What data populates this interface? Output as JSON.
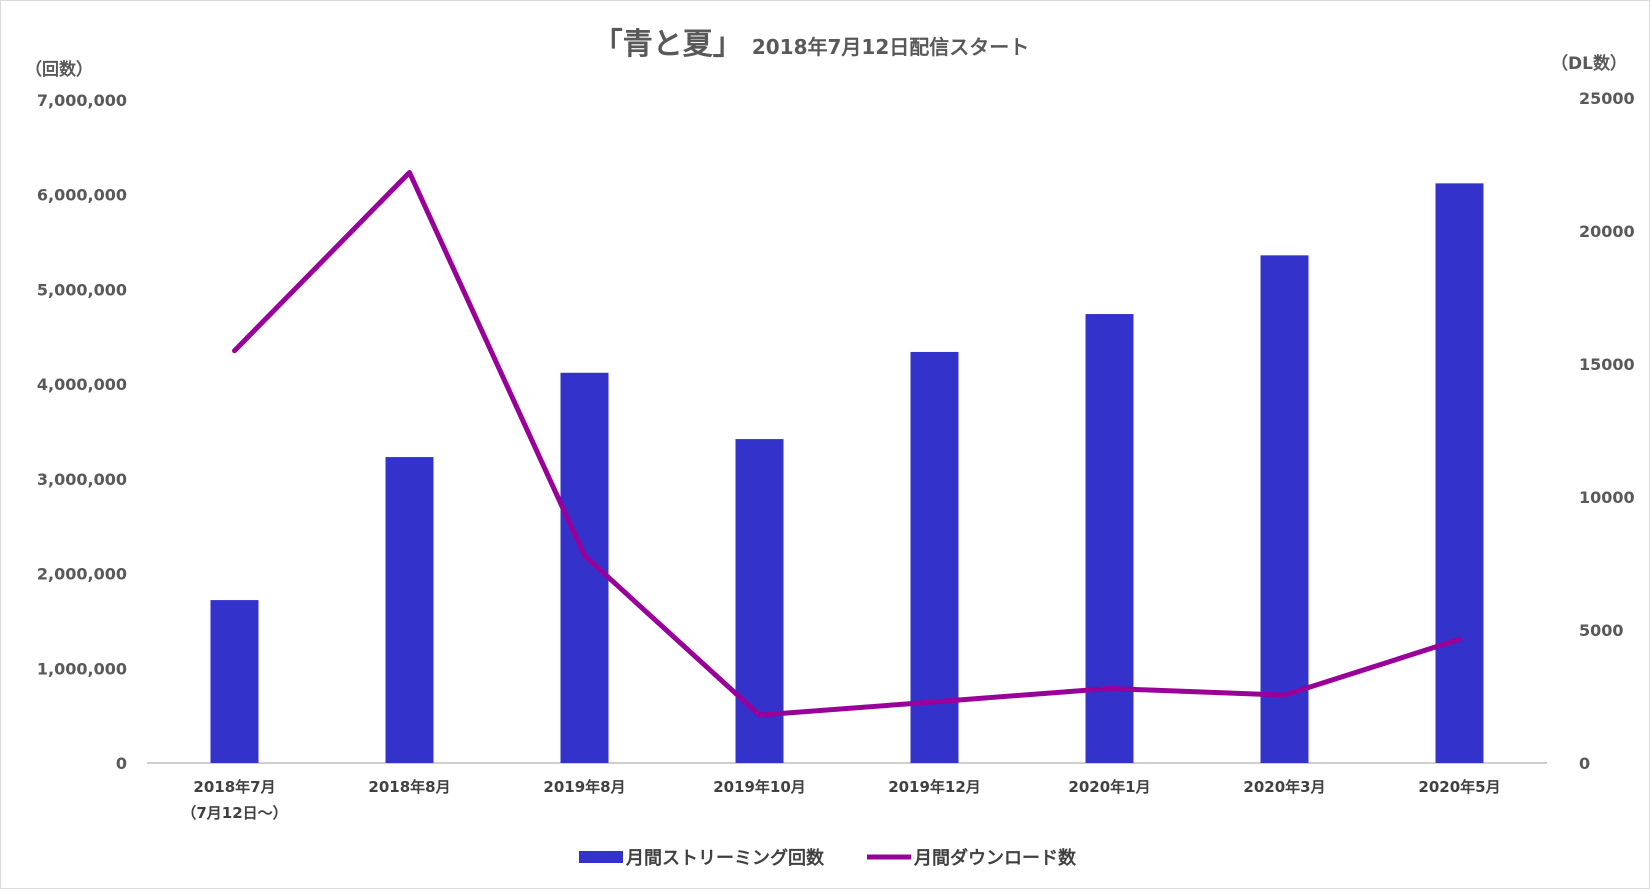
{
  "colors": {
    "bar": "#3333cc",
    "line": "#990099",
    "axis": "#bfbfbf",
    "text": "#595959"
  },
  "chart_data": {
    "type": "bar+line",
    "title_main": "「青と夏」",
    "title_sub": "2018年7月12日配信スタート",
    "y_left_unit": "（回数）",
    "y_right_unit": "（DL数）",
    "y_left_ticks": [
      "7,000,000",
      "6,000,000",
      "5,000,000",
      "4,000,000",
      "3,000,000",
      "2,000,000",
      "1,000,000",
      "0"
    ],
    "y_right_ticks": [
      "25000",
      "20000",
      "15000",
      "10000",
      "5000",
      "0"
    ],
    "ylim_left": [
      0,
      7000000
    ],
    "ylim_right": [
      0,
      25000
    ],
    "categories": [
      [
        "2018年7月",
        "（7月12日〜）"
      ],
      [
        "2018年8月"
      ],
      [
        "2019年8月"
      ],
      [
        "2019年10月"
      ],
      [
        "2019年12月"
      ],
      [
        "2020年1月"
      ],
      [
        "2020年3月"
      ],
      [
        "2020年5月"
      ]
    ],
    "series": [
      {
        "name": "月間ストリーミング回数",
        "type": "bar",
        "axis": "left",
        "values": [
          1720000,
          3230000,
          4120000,
          3420000,
          4340000,
          4740000,
          5360000,
          6120000
        ]
      },
      {
        "name": "月間ダウンロード数",
        "type": "line",
        "axis": "right",
        "values": [
          15500,
          22200,
          7800,
          1800,
          2300,
          2800,
          2550,
          4650
        ]
      }
    ],
    "legend_position": "bottom",
    "grid": false
  }
}
